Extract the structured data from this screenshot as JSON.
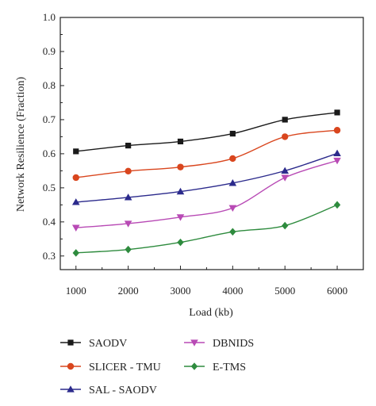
{
  "chart_data": {
    "type": "line",
    "title": "",
    "xlabel": "Load (kb)",
    "ylabel": "Network Resilience (Fraction)",
    "x": [
      1000,
      2000,
      3000,
      4000,
      5000,
      6000
    ],
    "xticks": [
      "1000",
      "2000",
      "3000",
      "4000",
      "5000",
      "6000"
    ],
    "yticks": [
      "0.3",
      "0.4",
      "0.5",
      "0.6",
      "0.7",
      "0.8",
      "0.9",
      "1.0"
    ],
    "ylim": [
      0.26,
      1.0
    ],
    "grid": false,
    "legend_position": "bottom",
    "series": [
      {
        "name": "SAODV",
        "color": "#1a1a1a",
        "marker": "square",
        "values": [
          0.607,
          0.624,
          0.636,
          0.659,
          0.7,
          0.721
        ]
      },
      {
        "name": "SLICER - TMU",
        "color": "#d9461e",
        "marker": "circle",
        "values": [
          0.53,
          0.549,
          0.561,
          0.586,
          0.65,
          0.669
        ]
      },
      {
        "name": "SAL - SAODV",
        "color": "#2b2a8c",
        "marker": "triangle-up",
        "values": [
          0.458,
          0.472,
          0.489,
          0.514,
          0.55,
          0.601
        ]
      },
      {
        "name": "DBNIDS",
        "color": "#b84ab5",
        "marker": "triangle-down",
        "values": [
          0.383,
          0.395,
          0.414,
          0.441,
          0.53,
          0.58
        ]
      },
      {
        "name": "E-TMS",
        "color": "#2e8b3e",
        "marker": "diamond",
        "values": [
          0.309,
          0.319,
          0.34,
          0.371,
          0.389,
          0.45
        ]
      }
    ]
  }
}
